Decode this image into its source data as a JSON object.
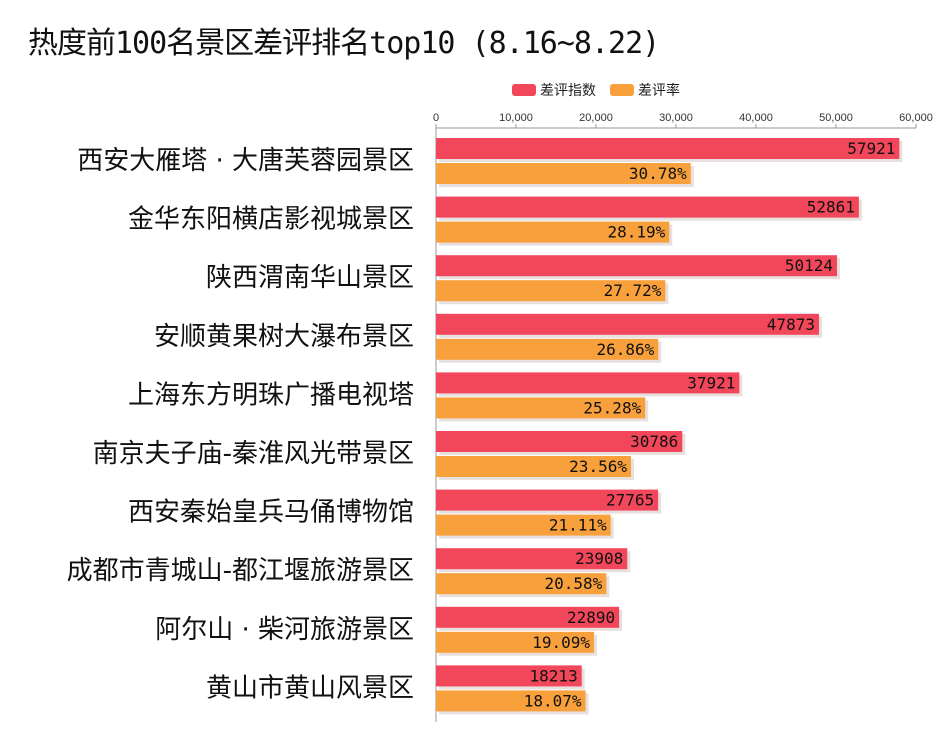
{
  "chart_data": {
    "type": "bar",
    "orientation": "horizontal",
    "title": "热度前100名景区差评排名top10 (8.16~8.22)",
    "categories": [
      "西安大雁塔 · 大唐芙蓉园景区",
      "金华东阳横店影视城景区",
      "陕西渭南华山景区",
      "安顺黄果树大瀑布景区",
      "上海东方明珠广播电视塔",
      "南京夫子庙-秦淮风光带景区",
      "西安秦始皇兵马俑博物馆",
      "成都市青城山-都江堰旅游景区",
      "阿尔山 · 柴河旅游景区",
      "黄山市黄山风景区"
    ],
    "series": [
      {
        "name": "差评指数",
        "color": "#f2475a",
        "values": [
          57921,
          52861,
          50124,
          47873,
          37921,
          30786,
          27765,
          23908,
          22890,
          18213
        ],
        "labels": [
          "57921",
          "52861",
          "50124",
          "47873",
          "37921",
          "30786",
          "27765",
          "23908",
          "22890",
          "18213"
        ]
      },
      {
        "name": "差评率",
        "color": "#f7a03c",
        "values": [
          30.78,
          28.19,
          27.72,
          26.86,
          25.28,
          23.56,
          21.11,
          20.58,
          19.09,
          18.07
        ],
        "labels": [
          "30.78%",
          "28.19%",
          "27.72%",
          "26.86%",
          "25.28%",
          "23.56%",
          "21.11%",
          "20.58%",
          "19.09%",
          "18.07%"
        ]
      }
    ],
    "xlim": [
      0,
      60000
    ],
    "x_ticks": [
      "0",
      "10,000",
      "20,000",
      "30,000",
      "40,000",
      "50,000",
      "60,000"
    ],
    "legend_position": "top",
    "grid": false
  }
}
